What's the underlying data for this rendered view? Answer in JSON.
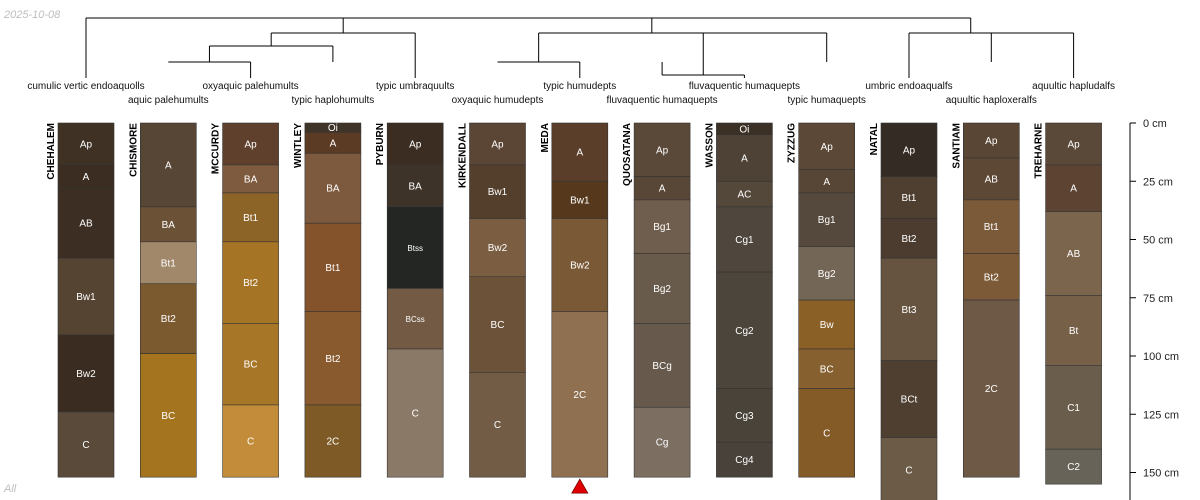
{
  "date": "2025-10-08",
  "panel_label": "All",
  "chart_data": {
    "type": "soil-profile-sketch",
    "title": "",
    "depth_units": "cm",
    "depth_ticks": [
      0,
      25,
      50,
      75,
      100,
      125,
      150
    ],
    "depth_tick_labels": [
      "0 cm",
      "25 cm",
      "50 cm",
      "75 cm",
      "100 cm",
      "125 cm",
      "150 cm"
    ],
    "dendrogram_leaf_order": [
      "CHEHALEM",
      "CHISMORE",
      "MCCURDY",
      "WINTLEY",
      "PYBURN",
      "KIRKENDALL",
      "MEDA",
      "QUOSATANA",
      "WASSON",
      "ZYZZUG",
      "NATAL",
      "SANTIAM",
      "TREHARNE"
    ],
    "marked_profile": "MEDA",
    "profiles": [
      {
        "name": "CHEHALEM",
        "taxonomy": "cumulic vertic endoaquolls",
        "horizons": [
          {
            "name": "Ap",
            "top": 0,
            "bottom": 18,
            "color": "#3f3225"
          },
          {
            "name": "A",
            "top": 18,
            "bottom": 28,
            "color": "#3b2d21"
          },
          {
            "name": "AB",
            "top": 28,
            "bottom": 58,
            "color": "#3c2e22"
          },
          {
            "name": "Bw1",
            "top": 58,
            "bottom": 91,
            "color": "#564433"
          },
          {
            "name": "Bw2",
            "top": 91,
            "bottom": 124,
            "color": "#3a2c20"
          },
          {
            "name": "C",
            "top": 124,
            "bottom": 152,
            "color": "#5a4a3a"
          }
        ]
      },
      {
        "name": "CHISMORE",
        "taxonomy": "aquic palehumults",
        "horizons": [
          {
            "name": "A",
            "top": 0,
            "bottom": 36,
            "color": "#574535"
          },
          {
            "name": "BA",
            "top": 36,
            "bottom": 51,
            "color": "#6b5237"
          },
          {
            "name": "Bt1",
            "top": 51,
            "bottom": 69,
            "color": "#a2886a"
          },
          {
            "name": "Bt2",
            "top": 69,
            "bottom": 99,
            "color": "#7b5a30"
          },
          {
            "name": "BC",
            "top": 99,
            "bottom": 152,
            "color": "#a5741f"
          }
        ]
      },
      {
        "name": "MCCURDY",
        "taxonomy": "oxyaquic palehumults",
        "horizons": [
          {
            "name": "Ap",
            "top": 0,
            "bottom": 18,
            "color": "#5e402c"
          },
          {
            "name": "BA",
            "top": 18,
            "bottom": 30,
            "color": "#7e5b3e"
          },
          {
            "name": "Bt1",
            "top": 30,
            "bottom": 51,
            "color": "#8c6428"
          },
          {
            "name": "Bt2",
            "top": 51,
            "bottom": 86,
            "color": "#a57424"
          },
          {
            "name": "BC",
            "top": 86,
            "bottom": 121,
            "color": "#a77627"
          },
          {
            "name": "C",
            "top": 121,
            "bottom": 152,
            "color": "#c28c3a"
          }
        ]
      },
      {
        "name": "WINTLEY",
        "taxonomy": "typic haplohumults",
        "horizons": [
          {
            "name": "Oi",
            "top": 0,
            "bottom": 4,
            "color": "#3f3428"
          },
          {
            "name": "A",
            "top": 4,
            "bottom": 13,
            "color": "#5c3b24"
          },
          {
            "name": "BA",
            "top": 13,
            "bottom": 43,
            "color": "#7d5a3e"
          },
          {
            "name": "Bt1",
            "top": 43,
            "bottom": 81,
            "color": "#85532b"
          },
          {
            "name": "Bt2",
            "top": 81,
            "bottom": 121,
            "color": "#885a2e"
          },
          {
            "name": "2C",
            "top": 121,
            "bottom": 152,
            "color": "#7e5b26"
          }
        ]
      },
      {
        "name": "PYBURN",
        "taxonomy": "typic umbraquults",
        "horizons": [
          {
            "name": "Ap",
            "top": 0,
            "bottom": 18,
            "color": "#3b2d22"
          },
          {
            "name": "BA",
            "top": 18,
            "bottom": 36,
            "color": "#3e3329"
          },
          {
            "name": "Btss",
            "top": 36,
            "bottom": 71,
            "color": "#242624"
          },
          {
            "name": "BCss",
            "top": 71,
            "bottom": 97,
            "color": "#725a44"
          },
          {
            "name": "C",
            "top": 97,
            "bottom": 152,
            "color": "#8b7967"
          }
        ]
      },
      {
        "name": "KIRKENDALL",
        "taxonomy": "oxyaquic humudepts",
        "horizons": [
          {
            "name": "Ap",
            "top": 0,
            "bottom": 18,
            "color": "#5b4535"
          },
          {
            "name": "Bw1",
            "top": 18,
            "bottom": 41,
            "color": "#543f2c"
          },
          {
            "name": "Bw2",
            "top": 41,
            "bottom": 66,
            "color": "#7b5d42"
          },
          {
            "name": "BC",
            "top": 66,
            "bottom": 107,
            "color": "#6d523a"
          },
          {
            "name": "C",
            "top": 107,
            "bottom": 152,
            "color": "#735c46"
          }
        ]
      },
      {
        "name": "MEDA",
        "taxonomy": "typic humudepts",
        "horizons": [
          {
            "name": "A",
            "top": 0,
            "bottom": 25,
            "color": "#5a3e2a"
          },
          {
            "name": "Bw1",
            "top": 25,
            "bottom": 41,
            "color": "#56391d"
          },
          {
            "name": "Bw2",
            "top": 41,
            "bottom": 81,
            "color": "#7a5936"
          },
          {
            "name": "2C",
            "top": 81,
            "bottom": 152,
            "color": "#8f7152"
          }
        ]
      },
      {
        "name": "QUOSATANA",
        "taxonomy": "fluvaquentic humaquepts",
        "horizons": [
          {
            "name": "Ap",
            "top": 0,
            "bottom": 23,
            "color": "#5a4838"
          },
          {
            "name": "A",
            "top": 23,
            "bottom": 33,
            "color": "#584636"
          },
          {
            "name": "Bg1",
            "top": 33,
            "bottom": 56,
            "color": "#6f5d4d"
          },
          {
            "name": "Bg2",
            "top": 56,
            "bottom": 86,
            "color": "#695b4c"
          },
          {
            "name": "BCg",
            "top": 86,
            "bottom": 122,
            "color": "#675a4d"
          },
          {
            "name": "Cg",
            "top": 122,
            "bottom": 152,
            "color": "#7c6e60"
          }
        ]
      },
      {
        "name": "WASSON",
        "taxonomy": "fluvaquentic humaquepts",
        "horizons": [
          {
            "name": "Oi",
            "top": 0,
            "bottom": 5,
            "color": "#3b3026"
          },
          {
            "name": "A",
            "top": 5,
            "bottom": 25,
            "color": "#4e4236"
          },
          {
            "name": "AC",
            "top": 25,
            "bottom": 36,
            "color": "#54483b"
          },
          {
            "name": "Cg1",
            "top": 36,
            "bottom": 64,
            "color": "#4f473d"
          },
          {
            "name": "Cg2",
            "top": 64,
            "bottom": 114,
            "color": "#4c453b"
          },
          {
            "name": "Cg3",
            "top": 114,
            "bottom": 137,
            "color": "#4a433a"
          },
          {
            "name": "Cg4",
            "top": 137,
            "bottom": 152,
            "color": "#48423a"
          }
        ]
      },
      {
        "name": "ZYZZUG",
        "taxonomy": "typic humaquepts",
        "horizons": [
          {
            "name": "Ap",
            "top": 0,
            "bottom": 20,
            "color": "#5c4837"
          },
          {
            "name": "A",
            "top": 20,
            "bottom": 30,
            "color": "#574535"
          },
          {
            "name": "Bg1",
            "top": 30,
            "bottom": 53,
            "color": "#55483c"
          },
          {
            "name": "Bg2",
            "top": 53,
            "bottom": 76,
            "color": "#746657"
          },
          {
            "name": "Bw",
            "top": 76,
            "bottom": 97,
            "color": "#8a6026"
          },
          {
            "name": "BC",
            "top": 97,
            "bottom": 114,
            "color": "#86602e"
          },
          {
            "name": "C",
            "top": 114,
            "bottom": 152,
            "color": "#845a27"
          }
        ]
      },
      {
        "name": "NATAL",
        "taxonomy": "umbric endoaqualfs",
        "horizons": [
          {
            "name": "Ap",
            "top": 0,
            "bottom": 23,
            "color": "#352b25"
          },
          {
            "name": "Bt1",
            "top": 23,
            "bottom": 41,
            "color": "#4e3f30"
          },
          {
            "name": "Bt2",
            "top": 41,
            "bottom": 58,
            "color": "#4b3c2f"
          },
          {
            "name": "Bt3",
            "top": 58,
            "bottom": 102,
            "color": "#665440"
          },
          {
            "name": "BCt",
            "top": 102,
            "bottom": 135,
            "color": "#4e3f31"
          },
          {
            "name": "C",
            "top": 135,
            "bottom": 163,
            "color": "#6b5b47"
          }
        ]
      },
      {
        "name": "SANTIAM",
        "taxonomy": "aquultic haploxeralfs",
        "horizons": [
          {
            "name": "Ap",
            "top": 0,
            "bottom": 15,
            "color": "#5a4635"
          },
          {
            "name": "AB",
            "top": 15,
            "bottom": 33,
            "color": "#5d4836"
          },
          {
            "name": "Bt1",
            "top": 33,
            "bottom": 56,
            "color": "#7b5a3a"
          },
          {
            "name": "Bt2",
            "top": 56,
            "bottom": 76,
            "color": "#7d5a37"
          },
          {
            "name": "2C",
            "top": 76,
            "bottom": 152,
            "color": "#6e5947"
          }
        ]
      },
      {
        "name": "TREHARNE",
        "taxonomy": "aquultic hapludalfs",
        "horizons": [
          {
            "name": "Ap",
            "top": 0,
            "bottom": 18,
            "color": "#5a4838"
          },
          {
            "name": "A",
            "top": 18,
            "bottom": 38,
            "color": "#5c4332"
          },
          {
            "name": "AB",
            "top": 38,
            "bottom": 74,
            "color": "#7b654c"
          },
          {
            "name": "Bt",
            "top": 74,
            "bottom": 104,
            "color": "#776048"
          },
          {
            "name": "C1",
            "top": 104,
            "bottom": 140,
            "color": "#6b5d4b"
          },
          {
            "name": "C2",
            "top": 140,
            "bottom": 155,
            "color": "#676358"
          }
        ]
      }
    ]
  }
}
